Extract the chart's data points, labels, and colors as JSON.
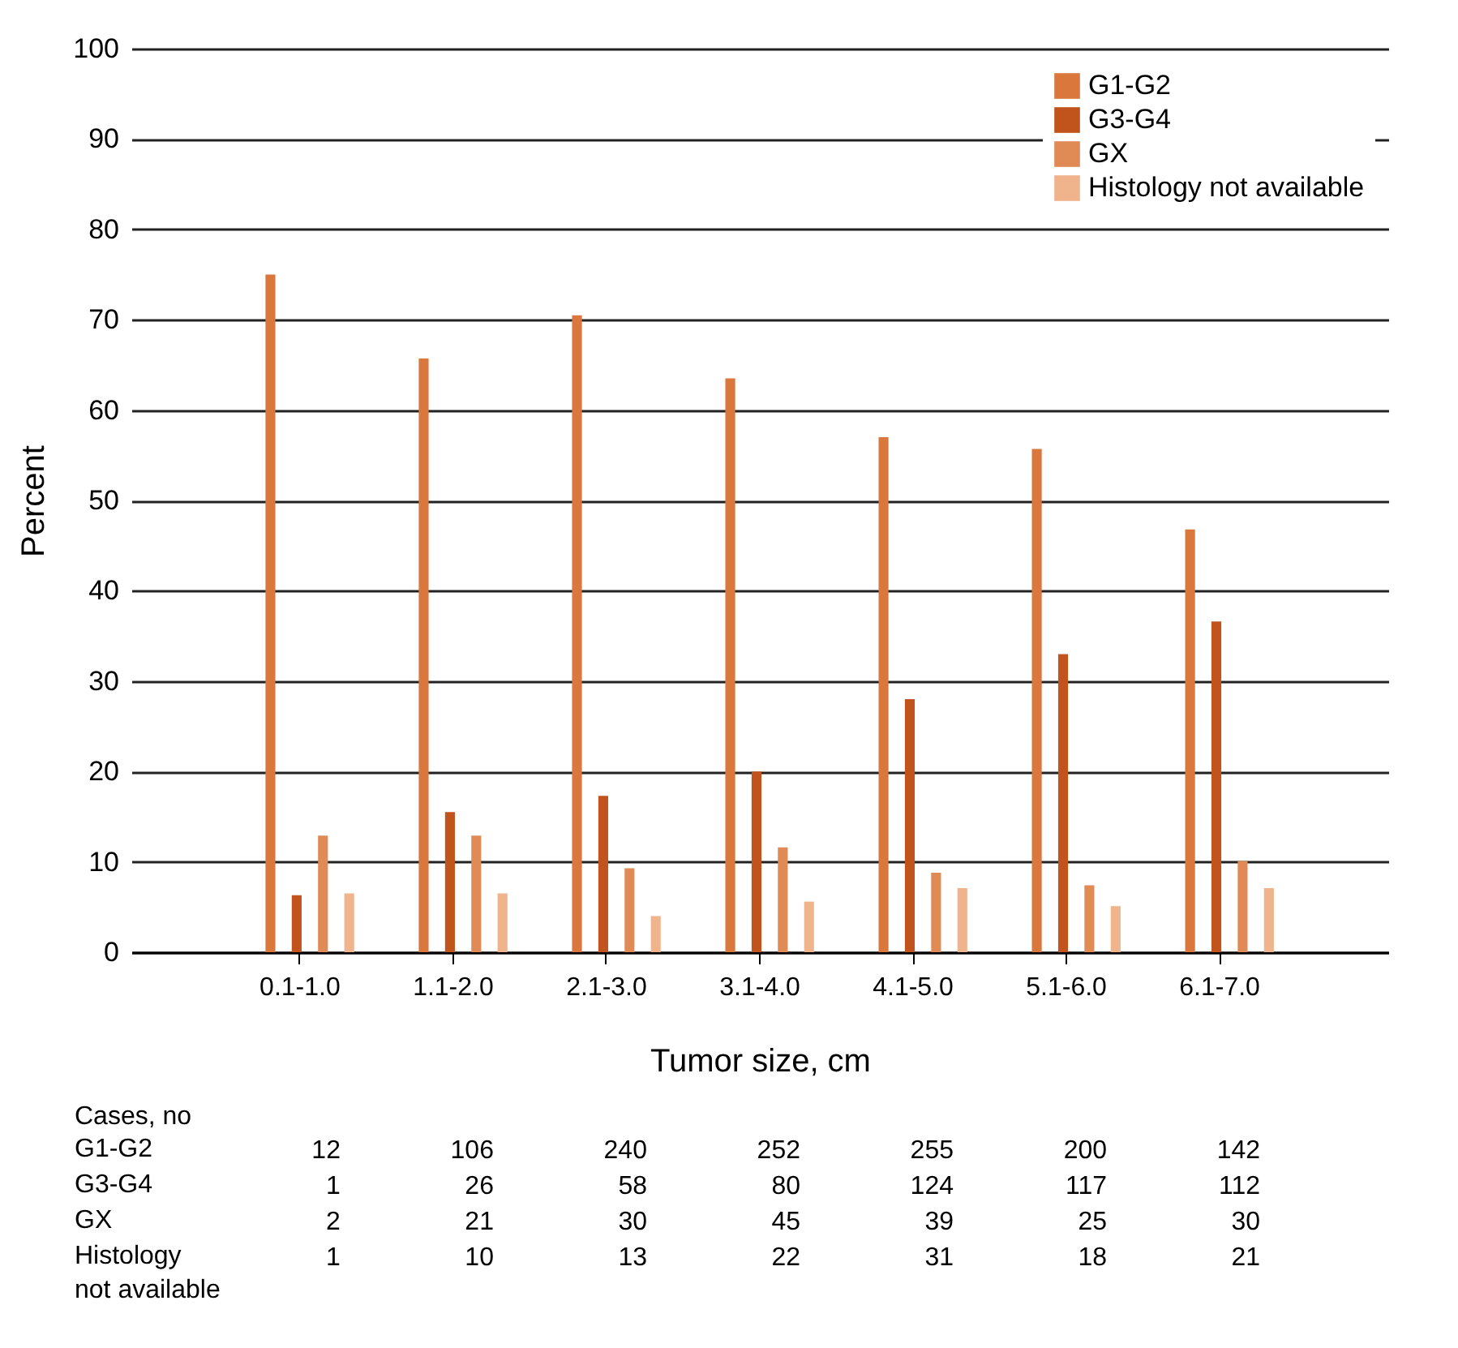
{
  "chart_data": {
    "type": "bar",
    "xlabel": "Tumor size, cm",
    "ylabel": "Percent",
    "categories": [
      "0.1-1.0",
      "1.1-2.0",
      "2.1-3.0",
      "3.1-4.0",
      "4.1-5.0",
      "5.1-6.0",
      "6.1-7.0"
    ],
    "series": [
      {
        "name": "G1-G2",
        "color": "#d9773d",
        "values": [
          75,
          65.7,
          70.5,
          63.5,
          57,
          55.7,
          46.8
        ]
      },
      {
        "name": "G3-G4",
        "color": "#c0541c",
        "values": [
          6.3,
          15.5,
          17.3,
          20,
          28,
          33,
          36.6
        ]
      },
      {
        "name": "GX",
        "color": "#e08a55",
        "values": [
          12.9,
          12.9,
          9.3,
          11.6,
          8.8,
          7.4,
          10.1
        ]
      },
      {
        "name": "Histology not available",
        "color": "#f0b48c",
        "values": [
          6.5,
          6.5,
          4,
          5.6,
          7.1,
          5.1,
          7.1
        ]
      }
    ],
    "ylim": [
      0,
      100
    ],
    "yticks": [
      0,
      10,
      20,
      30,
      40,
      50,
      60,
      70,
      80,
      90,
      100
    ],
    "grid": "y",
    "legend": "top right",
    "annotations": [
      "Cases, no",
      "G1-G2",
      "12",
      "106",
      "240",
      "252",
      "255",
      "200",
      "142",
      "G3-G4",
      "1",
      "26",
      "58",
      "80",
      "124",
      "117",
      "112",
      "GX",
      "2",
      "21",
      "30",
      "45",
      "39",
      "25",
      "30",
      "Histology\nnot available",
      "1",
      "10",
      "13",
      "22",
      "31",
      "18",
      "21"
    ]
  }
}
